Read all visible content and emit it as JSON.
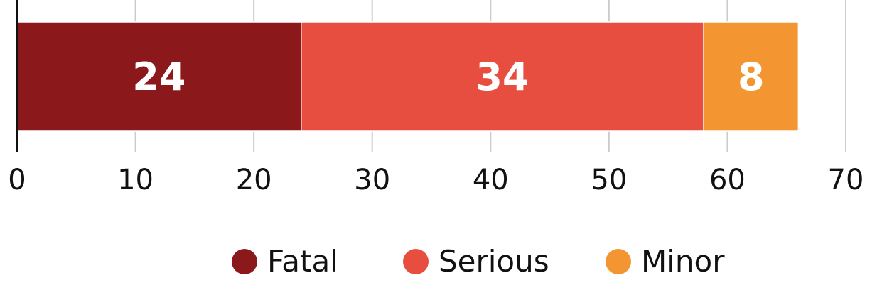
{
  "chart_data": {
    "type": "bar",
    "orientation": "horizontal",
    "stacked": true,
    "title": "",
    "xlabel": "",
    "ylabel": "",
    "xlim": [
      0,
      70
    ],
    "xticks": [
      0,
      10,
      20,
      30,
      40,
      50,
      60,
      70
    ],
    "grid": true,
    "legend_position": "bottom-center",
    "series": [
      {
        "name": "Fatal",
        "value": 24,
        "color": "#8b181b"
      },
      {
        "name": "Serious",
        "value": 34,
        "color": "#e84e3f"
      },
      {
        "name": "Minor",
        "value": 8,
        "color": "#f39530"
      }
    ]
  }
}
